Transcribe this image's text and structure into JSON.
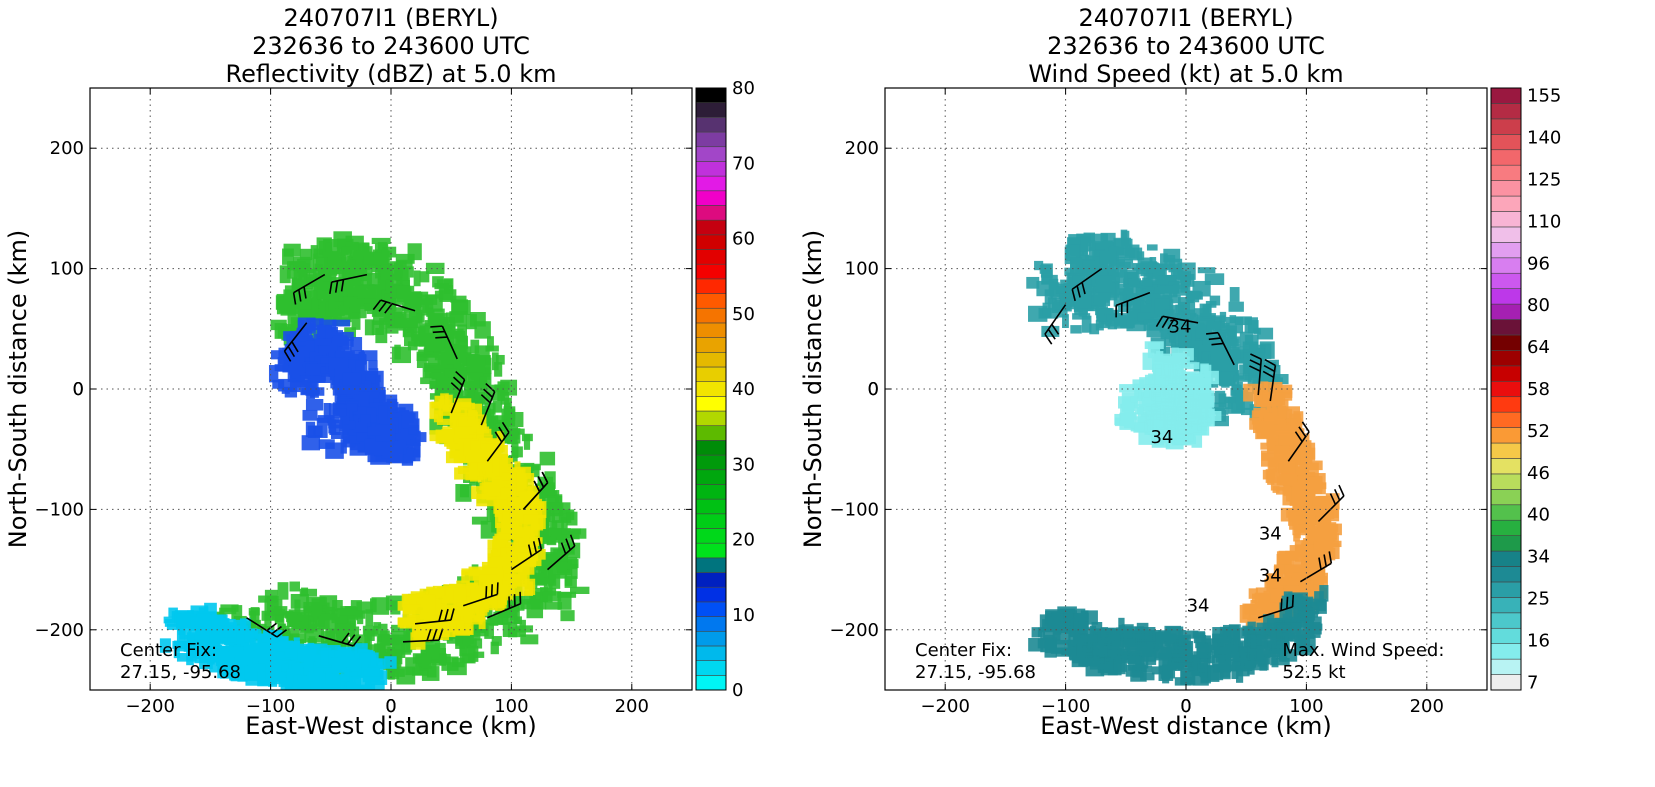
{
  "chart_data": [
    {
      "type": "heatmap",
      "title_lines": [
        "240707I1 (BERYL)",
        "232636 to 243600 UTC",
        "Reflectivity (dBZ) at 5.0 km"
      ],
      "xlabel": "East-West distance (km)",
      "ylabel": "North-South distance (km)",
      "xlim": [
        -250,
        250
      ],
      "ylim": [
        -250,
        250
      ],
      "xticks": [
        -200,
        -100,
        0,
        100,
        200
      ],
      "yticks": [
        -200,
        -100,
        0,
        100,
        200
      ],
      "grid": true,
      "annotation_left": [
        "Center Fix:",
        "27.15, -95.68"
      ],
      "colorbar": {
        "min": 0,
        "max": 80,
        "tick_values": [
          0,
          10,
          20,
          30,
          40,
          50,
          60,
          70,
          80
        ],
        "tick_labels": [
          "0",
          "10",
          "20",
          "30",
          "40",
          "50",
          "60",
          "70",
          "80"
        ],
        "colors": [
          "#00f5f5",
          "#00d7f0",
          "#00b9ec",
          "#009bea",
          "#0078ef",
          "#0050f5",
          "#0030e5",
          "#0020c0",
          "#00747e",
          "#00e11c",
          "#00d81a",
          "#00cd17",
          "#00c114",
          "#00b411",
          "#00a70e",
          "#009a0b",
          "#008c08",
          "#5dba00",
          "#b2d800",
          "#ffff00",
          "#f2e400",
          "#e8ce00",
          "#e5b900",
          "#e9a300",
          "#ee8e00",
          "#f57400",
          "#ff5a00",
          "#ff2800",
          "#f40000",
          "#e20000",
          "#d00000",
          "#c50010",
          "#dd0b7f",
          "#f000c8",
          "#e21ae6",
          "#c031dc",
          "#a246c8",
          "#7d3ca2",
          "#573270",
          "#2d1d37",
          "#000000"
        ]
      },
      "series": [
        {
          "name": "",
          "shape": "arc",
          "color": "#2fbf2f",
          "points": [
            [
              -70,
              55
            ],
            [
              -55,
              95
            ],
            [
              -20,
              95
            ],
            [
              20,
              65
            ],
            [
              55,
              25
            ],
            [
              75,
              -30
            ],
            [
              110,
              -100
            ],
            [
              130,
              -150
            ],
            [
              80,
              -190
            ],
            [
              10,
              -210
            ],
            [
              -60,
              -205
            ],
            [
              -120,
              -190
            ]
          ]
        },
        {
          "name": "",
          "shape": "band",
          "color": "#f0e400",
          "points": [
            [
              50,
              -20
            ],
            [
              80,
              -60
            ],
            [
              110,
              -100
            ],
            [
              100,
              -150
            ],
            [
              60,
              -180
            ],
            [
              20,
              -195
            ]
          ]
        },
        {
          "name": "",
          "shape": "inner",
          "color": "#1a50e8",
          "points": [
            [
              -80,
              10
            ],
            [
              -60,
              40
            ],
            [
              -30,
              10
            ],
            [
              -20,
              -30
            ],
            [
              10,
              -40
            ],
            [
              -60,
              -30
            ]
          ]
        },
        {
          "name": "",
          "shape": "tail",
          "color": "#00c8ee",
          "points": [
            [
              -170,
              -200
            ],
            [
              -130,
              -215
            ],
            [
              -100,
              -225
            ],
            [
              -60,
              -235
            ],
            [
              -10,
              -235
            ]
          ]
        }
      ]
    },
    {
      "type": "heatmap",
      "title_lines": [
        "240707I1 (BERYL)",
        "232636 to 243600 UTC",
        "Wind Speed (kt) at 5.0 km"
      ],
      "xlabel": "East-West distance (km)",
      "ylabel": "North-South distance (km)",
      "xlim": [
        -250,
        250
      ],
      "ylim": [
        -250,
        250
      ],
      "xticks": [
        -200,
        -100,
        0,
        100,
        200
      ],
      "yticks": [
        -200,
        -100,
        0,
        100,
        200
      ],
      "grid": true,
      "annotation_left": [
        "Center Fix:",
        "27.15, -95.68"
      ],
      "annotation_right": [
        "Max. Wind Speed:",
        "52.5 kt"
      ],
      "contour_labels": [
        {
          "text": "34",
          "x": -5,
          "y": 47
        },
        {
          "text": "34",
          "x": -20,
          "y": -45
        },
        {
          "text": "34",
          "x": 70,
          "y": -125
        },
        {
          "text": "34",
          "x": 70,
          "y": -160
        },
        {
          "text": "34",
          "x": 10,
          "y": -185
        }
      ],
      "colorbar": {
        "min": 7,
        "max": 160,
        "tick_values": [
          7,
          16,
          25,
          34,
          40,
          46,
          52,
          58,
          64,
          80,
          96,
          110,
          125,
          140,
          155
        ],
        "tick_labels": [
          "7",
          "16",
          "25",
          "34",
          "40",
          "46",
          "52",
          "58",
          "64",
          "80",
          "96",
          "110",
          "125",
          "140",
          "155"
        ],
        "colors": [
          "#eeeeee",
          "#b8f3f3",
          "#84ecec",
          "#62dcdc",
          "#4cc8cb",
          "#38b2b8",
          "#2a9ea6",
          "#1d8a94",
          "#178288",
          "#1e9a4a",
          "#27b040",
          "#53c14c",
          "#8ad155",
          "#b9dd5c",
          "#e4e162",
          "#f5c848",
          "#fa9a35",
          "#ff6a22",
          "#ff3a10",
          "#ea0e0e",
          "#c70000",
          "#9d0000",
          "#740000",
          "#6a1238",
          "#a520b2",
          "#bd38e9",
          "#cc58ef",
          "#d87ef0",
          "#e29ef0",
          "#f0bfe9",
          "#f8b4d4",
          "#fca6ba",
          "#fb92a2",
          "#f87b80",
          "#f2676b",
          "#e35359",
          "#cc3e4b",
          "#b42b44",
          "#9a1840"
        ]
      },
      "series": [
        {
          "name": "",
          "shape": "arc",
          "color": "#2a9ea6",
          "points": [
            [
              -100,
              70
            ],
            [
              -70,
              100
            ],
            [
              -30,
              80
            ],
            [
              10,
              55
            ],
            [
              40,
              20
            ],
            [
              60,
              -5
            ]
          ]
        },
        {
          "name": "",
          "shape": "band",
          "color": "#f5a040",
          "points": [
            [
              70,
              -10
            ],
            [
              85,
              -60
            ],
            [
              110,
              -110
            ],
            [
              95,
              -160
            ],
            [
              60,
              -190
            ]
          ]
        },
        {
          "name": "",
          "shape": "tail",
          "color": "#1d8a94",
          "points": [
            [
              -110,
              -200
            ],
            [
              -60,
              -215
            ],
            [
              0,
              -225
            ],
            [
              60,
              -215
            ],
            [
              110,
              -180
            ]
          ]
        },
        {
          "name": "",
          "shape": "inner",
          "color": "#84ecec",
          "points": [
            [
              -20,
              20
            ],
            [
              10,
              -10
            ],
            [
              -10,
              -30
            ],
            [
              -40,
              -10
            ]
          ]
        }
      ]
    }
  ]
}
